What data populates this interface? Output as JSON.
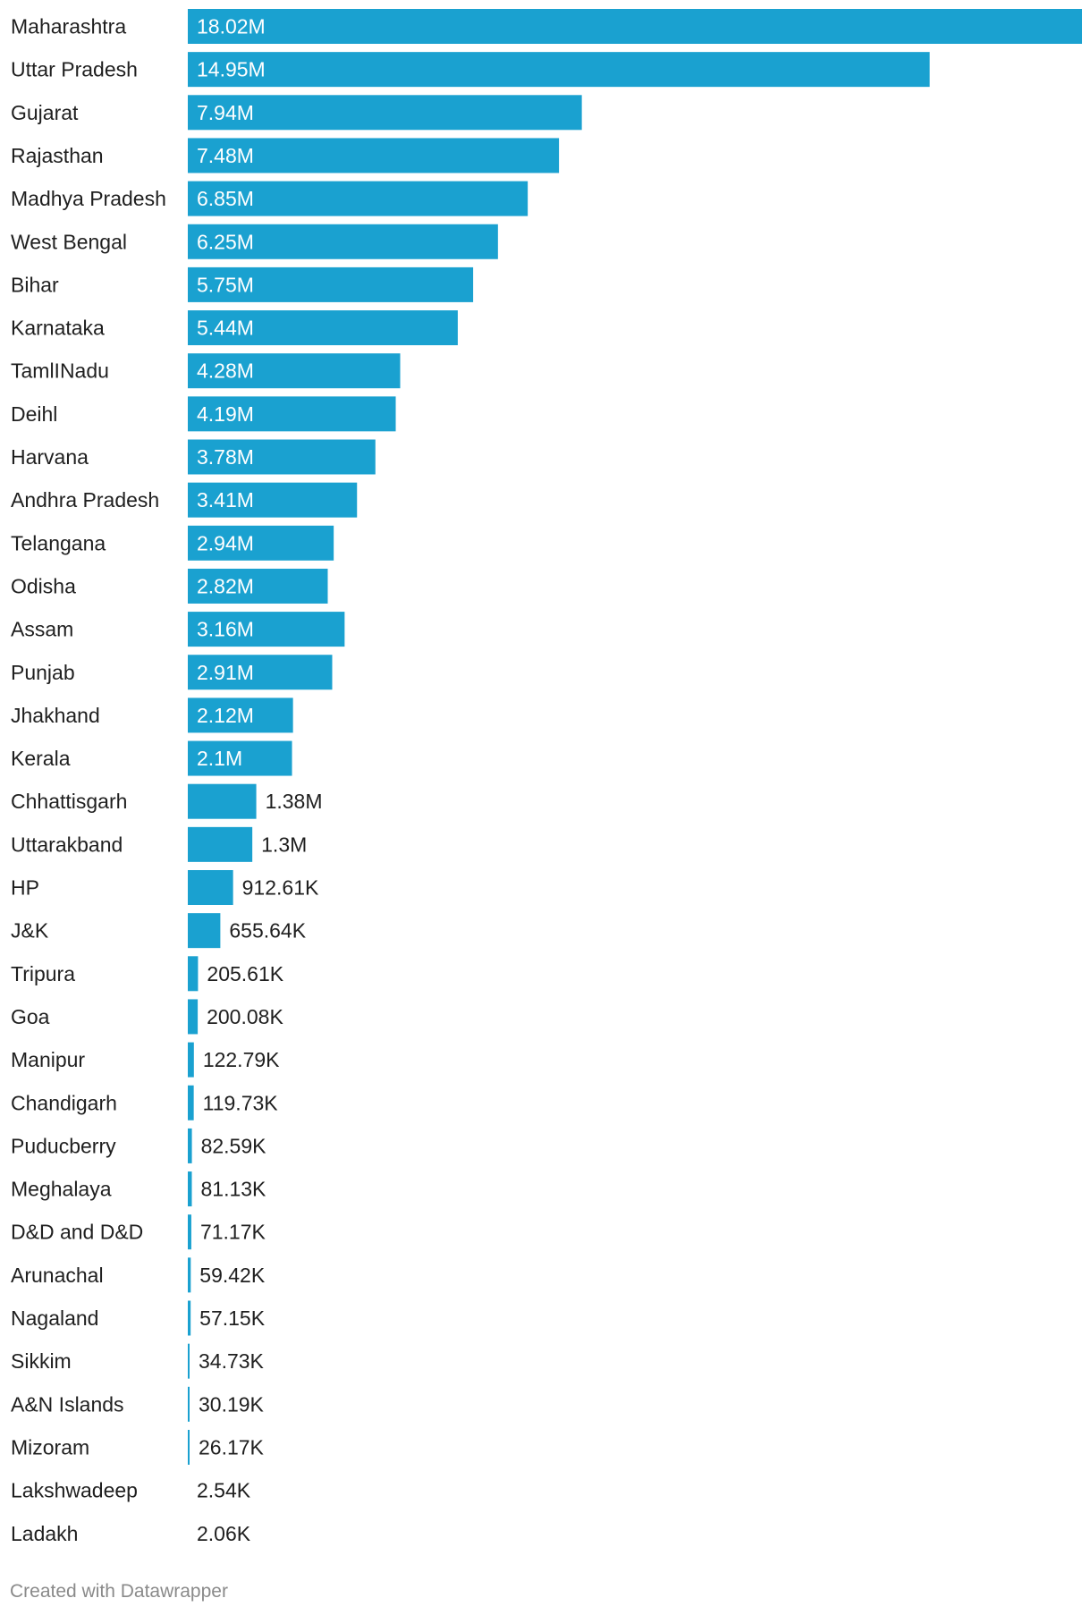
{
  "footer": {
    "credit": "Created with Datawrapper"
  },
  "chart_data": {
    "type": "bar",
    "orientation": "horizontal",
    "bar_color": "#1aa1d0",
    "label_inside_color": "#ffffff",
    "label_outside_color": "#1f1f1f",
    "xlim": [
      0,
      18020000
    ],
    "categories": [
      "Maharashtra",
      "Uttar Pradesh",
      "Gujarat",
      "Rajasthan",
      "Madhya Pradesh",
      "West Bengal",
      "Bihar",
      "Karnataka",
      "TamlINadu",
      "Deihl",
      "Harvana",
      "Andhra Pradesh",
      "Telangana",
      "Odisha",
      "Assam",
      "Punjab",
      "Jhakhand",
      "Kerala",
      "Chhattisgarh",
      "Uttarakband",
      "HP",
      "J&K",
      "Tripura",
      "Goa",
      "Manipur",
      "Chandigarh",
      "Puducberry",
      "Meghalaya",
      "D&D and D&D",
      "Arunachal",
      "Nagaland",
      "Sikkim",
      "A&N Islands",
      "Mizoram",
      "Lakshwadeep",
      "Ladakh"
    ],
    "values": [
      18020000,
      14950000,
      7940000,
      7480000,
      6850000,
      6250000,
      5750000,
      5440000,
      4280000,
      4190000,
      3780000,
      3410000,
      2940000,
      2820000,
      3160000,
      2910000,
      2120000,
      2100000,
      1380000,
      1300000,
      912610,
      655640,
      205610,
      200080,
      122790,
      119730,
      82590,
      81130,
      71170,
      59420,
      57150,
      34730,
      30190,
      26170,
      2540,
      2060
    ],
    "value_labels": [
      "18.02M",
      "14.95M",
      "7.94M",
      "7.48M",
      "6.85M",
      "6.25M",
      "5.75M",
      "5.44M",
      "4.28M",
      "4.19M",
      "3.78M",
      "3.41M",
      "2.94M",
      "2.82M",
      "3.16M",
      "2.91M",
      "2.12M",
      "2.1M",
      "1.38M",
      "1.3M",
      "912.61K",
      "655.64K",
      "205.61K",
      "200.08K",
      "122.79K",
      "119.73K",
      "82.59K",
      "81.13K",
      "71.17K",
      "59.42K",
      "57.15K",
      "34.73K",
      "30.19K",
      "26.17K",
      "2.54K",
      "2.06K"
    ]
  }
}
